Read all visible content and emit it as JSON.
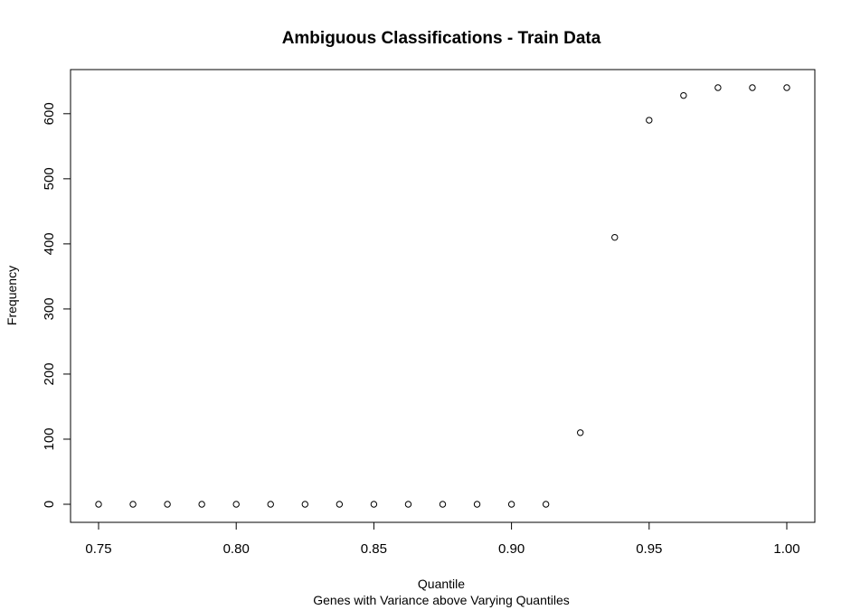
{
  "chart_data": {
    "type": "scatter",
    "title": "Ambiguous Classifications - Train Data",
    "xlabel": "Quantile",
    "subtitle": "Genes with Variance above Varying Quantiles",
    "ylabel": "Frequency",
    "xlim": [
      0.75,
      1.0
    ],
    "ylim": [
      0,
      640
    ],
    "x_ticks": [
      "0.75",
      "0.80",
      "0.85",
      "0.90",
      "0.95",
      "1.00"
    ],
    "y_ticks": [
      "0",
      "100",
      "200",
      "300",
      "400",
      "500",
      "600"
    ],
    "grid": false,
    "points": [
      {
        "x": 0.75,
        "y": 0
      },
      {
        "x": 0.7625,
        "y": 0
      },
      {
        "x": 0.775,
        "y": 0
      },
      {
        "x": 0.7875,
        "y": 0
      },
      {
        "x": 0.8,
        "y": 0
      },
      {
        "x": 0.8125,
        "y": 0
      },
      {
        "x": 0.825,
        "y": 0
      },
      {
        "x": 0.8375,
        "y": 0
      },
      {
        "x": 0.85,
        "y": 0
      },
      {
        "x": 0.8625,
        "y": 0
      },
      {
        "x": 0.875,
        "y": 0
      },
      {
        "x": 0.8875,
        "y": 0
      },
      {
        "x": 0.9,
        "y": 0
      },
      {
        "x": 0.9125,
        "y": 0
      },
      {
        "x": 0.925,
        "y": 110
      },
      {
        "x": 0.9375,
        "y": 410
      },
      {
        "x": 0.95,
        "y": 590
      },
      {
        "x": 0.9625,
        "y": 628
      },
      {
        "x": 0.975,
        "y": 640
      },
      {
        "x": 0.9875,
        "y": 640
      },
      {
        "x": 1.0,
        "y": 640
      }
    ]
  }
}
